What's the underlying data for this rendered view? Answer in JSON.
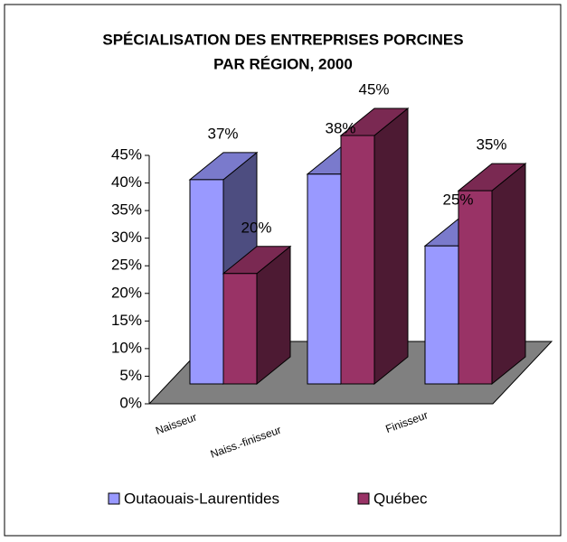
{
  "chart_data": {
    "type": "bar3d",
    "title": "SPÉCIALISATION DES ENTREPRISES PORCINES",
    "subtitle": "PAR RÉGION, 2000",
    "categories": [
      "Naisseur",
      "Naiss.-finisseur",
      "Finisseur"
    ],
    "series": [
      {
        "name": "Outaouais-Laurentides",
        "color": "#9999ff",
        "values": [
          37,
          38,
          25
        ],
        "value_labels": [
          "37%",
          "38%",
          "25%"
        ]
      },
      {
        "name": "Québec",
        "color": "#993366",
        "values": [
          20,
          45,
          35
        ],
        "value_labels": [
          "20%",
          "45%",
          "35%"
        ]
      }
    ],
    "ylim": [
      0,
      45
    ],
    "yticks": [
      {
        "value": 0,
        "label": "0%"
      },
      {
        "value": 5,
        "label": "5%"
      },
      {
        "value": 10,
        "label": "10%"
      },
      {
        "value": 15,
        "label": "15%"
      },
      {
        "value": 20,
        "label": "20%"
      },
      {
        "value": 25,
        "label": "25%"
      },
      {
        "value": 30,
        "label": "30%"
      },
      {
        "value": 35,
        "label": "35%"
      },
      {
        "value": 40,
        "label": "40%"
      },
      {
        "value": 45,
        "label": "45%"
      }
    ],
    "legend": "bottom"
  }
}
